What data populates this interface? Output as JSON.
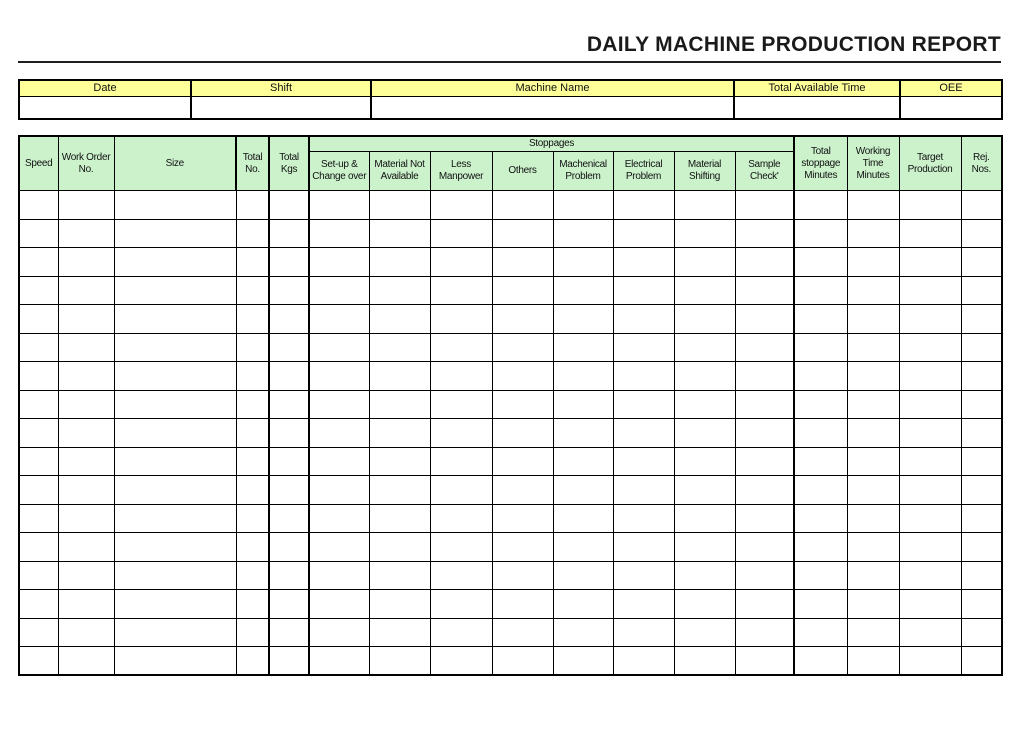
{
  "page": {
    "title": "DAILY MACHINE PRODUCTION REPORT"
  },
  "info_table": {
    "headers": [
      "Date",
      "Shift",
      "Machine Name",
      "Total Available Time",
      "OEE"
    ],
    "values": [
      "",
      "",
      "",
      "",
      ""
    ]
  },
  "main_table": {
    "stoppages_label": "Stoppages",
    "left_columns": [
      "Speed",
      "Work Order No.",
      "Size",
      "Total No.",
      "Total Kgs"
    ],
    "stoppage_columns": [
      "Set-up & Change over",
      "Material Not Available",
      "Less Manpower",
      "Others",
      "Machenical Problem",
      "Electrical Problem",
      "Material Shifting",
      "Sample Check'"
    ],
    "right_columns": [
      "Total stoppage Minutes",
      "Working Time Minutes",
      "Target Production",
      "Rej. Nos."
    ],
    "column_count": 17,
    "body_row_count": 17,
    "body_cells": ""
  },
  "colors": {
    "header_yellow": "#FFFF99",
    "header_green": "#CCF2CC",
    "grid_line": "#000000",
    "title_text": "#1A1A1A"
  }
}
